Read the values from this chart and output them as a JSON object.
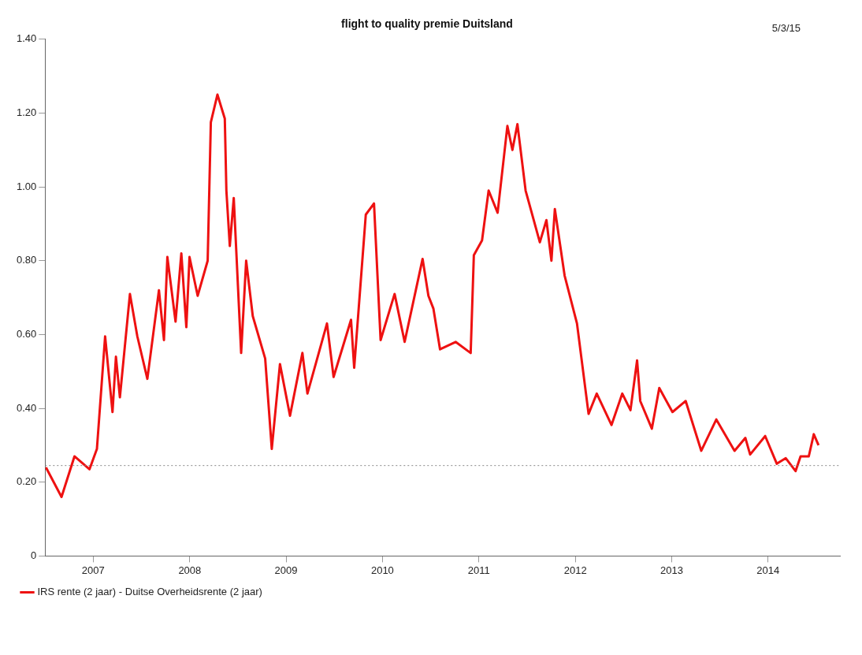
{
  "chart_data": {
    "type": "line",
    "title": "flight to quality premie Duitsland",
    "annotations": [
      "5/3/15"
    ],
    "xlim": [
      "2007-01-01",
      "2015-03-31"
    ],
    "xticks": [
      {
        "value": "2007-07-02",
        "label": "2007"
      },
      {
        "value": "2008-07-02",
        "label": "2008"
      },
      {
        "value": "2009-07-02",
        "label": "2009"
      },
      {
        "value": "2010-07-02",
        "label": "2010"
      },
      {
        "value": "2011-07-02",
        "label": "2011"
      },
      {
        "value": "2012-07-02",
        "label": "2012"
      },
      {
        "value": "2013-07-02",
        "label": "2013"
      },
      {
        "value": "2014-07-02",
        "label": "2014"
      }
    ],
    "ylim": [
      0,
      1.4
    ],
    "yticks": [
      0,
      {
        "value": 0.2,
        "label": "0.20"
      },
      {
        "value": 0.4,
        "label": "0.40"
      },
      {
        "value": 0.6,
        "label": "0.60"
      },
      {
        "value": 0.8,
        "label": "0.80"
      },
      {
        "value": 1.0,
        "label": "1.00"
      },
      {
        "value": 1.2,
        "label": "1.20"
      },
      {
        "value": 1.4,
        "label": "1.40"
      }
    ],
    "grid": false,
    "legend": "bottom left",
    "marker": "none",
    "line_style": "solid",
    "ref_lines": [
      {
        "axis": "y",
        "value": 0.245,
        "color": "#888888",
        "line_style": "dotted"
      }
    ],
    "x": [
      "2007-01-04",
      "2007-03-04",
      "2007-04-22",
      "2007-06-18",
      "2007-07-16",
      "2007-08-16",
      "2007-09-13",
      "2007-09-26",
      "2007-10-11",
      "2007-11-18",
      "2007-12-16",
      "2008-01-23",
      "2008-03-07",
      "2008-03-26",
      "2008-04-08",
      "2008-05-09",
      "2008-05-31",
      "2008-06-19",
      "2008-07-01",
      "2008-08-01",
      "2008-09-08",
      "2008-09-20",
      "2008-10-15",
      "2008-11-12",
      "2008-11-18",
      "2008-12-01",
      "2008-12-16",
      "2009-01-13",
      "2009-02-01",
      "2009-02-26",
      "2009-04-14",
      "2009-05-09",
      "2009-06-09",
      "2009-07-17",
      "2009-09-02",
      "2009-09-21",
      "2009-12-04",
      "2009-12-29",
      "2010-03-05",
      "2010-03-17",
      "2010-04-30",
      "2010-05-31",
      "2010-06-25",
      "2010-08-17",
      "2010-09-24",
      "2010-12-01",
      "2010-12-23",
      "2011-01-11",
      "2011-02-05",
      "2011-04-05",
      "2011-06-01",
      "2011-06-13",
      "2011-07-14",
      "2011-08-08",
      "2011-09-11",
      "2011-10-18",
      "2011-11-06",
      "2011-11-25",
      "2011-12-26",
      "2012-02-18",
      "2012-03-14",
      "2012-04-02",
      "2012-04-15",
      "2012-05-22",
      "2012-07-08",
      "2012-08-21",
      "2012-09-21",
      "2012-11-16",
      "2012-12-27",
      "2013-01-27",
      "2013-02-21",
      "2013-03-05",
      "2013-04-18",
      "2013-05-16",
      "2013-07-05",
      "2013-08-24",
      "2013-10-22",
      "2013-12-18",
      "2014-02-25",
      "2014-04-07",
      "2014-04-25",
      "2014-06-21",
      "2014-08-04",
      "2014-09-07",
      "2014-10-14",
      "2014-11-02",
      "2014-12-03",
      "2014-12-22",
      "2015-01-09"
    ],
    "series": [
      {
        "name": "IRS rente (2 jaar) - Duitse Overheidsrente (2 jaar)",
        "color": "#ee1111",
        "values": [
          0.24,
          0.16,
          0.27,
          0.235,
          0.29,
          0.595,
          0.39,
          0.54,
          0.43,
          0.71,
          0.595,
          0.48,
          0.72,
          0.585,
          0.81,
          0.635,
          0.82,
          0.62,
          0.81,
          0.705,
          0.8,
          1.175,
          1.25,
          1.185,
          0.99,
          0.84,
          0.97,
          0.55,
          0.8,
          0.65,
          0.535,
          0.29,
          0.52,
          0.38,
          0.55,
          0.44,
          0.63,
          0.485,
          0.64,
          0.51,
          0.925,
          0.955,
          0.585,
          0.71,
          0.58,
          0.805,
          0.705,
          0.67,
          0.56,
          0.58,
          0.55,
          0.815,
          0.855,
          0.99,
          0.93,
          1.165,
          1.1,
          1.17,
          0.99,
          0.85,
          0.91,
          0.8,
          0.94,
          0.76,
          0.63,
          0.385,
          0.44,
          0.355,
          0.44,
          0.395,
          0.53,
          0.42,
          0.345,
          0.455,
          0.39,
          0.42,
          0.285,
          0.37,
          0.285,
          0.32,
          0.275,
          0.325,
          0.25,
          0.265,
          0.23,
          0.27,
          0.27,
          0.33,
          0.3
        ]
      }
    ]
  }
}
